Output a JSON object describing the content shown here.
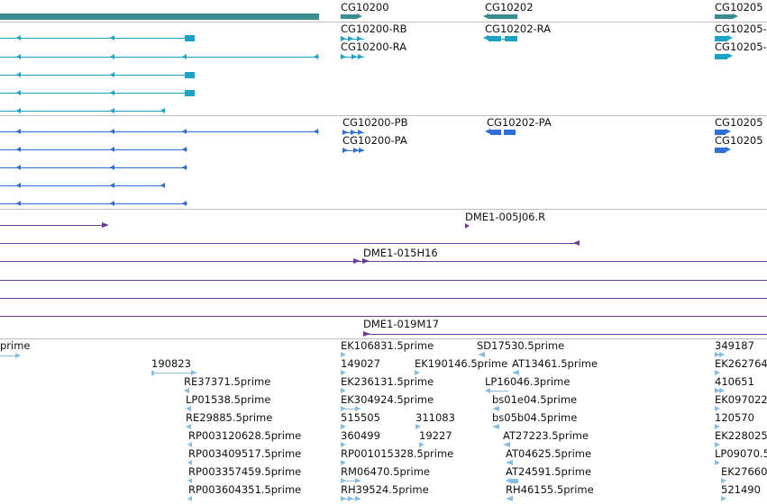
{
  "colors": {
    "gene": "#3a8e8f",
    "mrna": "#1aa3c4",
    "cds": "#2f6fd6",
    "clone": "#6a3d9a",
    "est": "#86bde0",
    "separator": "#bdbdbd"
  },
  "genes_track": {
    "labels": [
      "CG10200",
      "CG10202",
      "CG10205"
    ]
  },
  "mrna_track": {
    "labels": [
      "CG10200-RB",
      "CG10200-RA",
      "CG10202-RA",
      "CG10205-",
      "CG10205-"
    ]
  },
  "cds_track": {
    "labels": [
      "CG10200-PB",
      "CG10200-PA",
      "CG10202-PA",
      "CG10205",
      "CG10205"
    ]
  },
  "clones_track": {
    "labels": [
      "DME1-005J06.R",
      "DME1-015H16",
      "DME1-019M17"
    ]
  },
  "est_track": {
    "labels": [
      "prime",
      "190823",
      "RE37371.5prime",
      "LP01538.5prime",
      "RE29885.5prime",
      "RP003120628.5prime",
      "RP003409517.5prime",
      "RP003357459.5prime",
      "RP003604351.5prime",
      "EK106831.5prime",
      "149027",
      "EK236131.5prime",
      "EK304924.5prime",
      "515505",
      "360499",
      "RP001015328.5prime",
      "RM06470.5prime",
      "RH39524.5prime",
      "EK190146.5prime",
      "311083",
      "19227",
      "SD17530.5prime",
      "AT13461.5prime",
      "LP16046.3prime",
      "bs01e04.5prime",
      "bs05b04.5prime",
      "AT27223.5prime",
      "AT04625.5prime",
      "AT24591.5prime",
      "RH46155.5prime",
      "349187",
      "EK262764",
      "410651",
      "EK097022",
      "120570",
      "EK228025",
      "LP09070.5",
      "EK27660",
      "521490"
    ]
  }
}
